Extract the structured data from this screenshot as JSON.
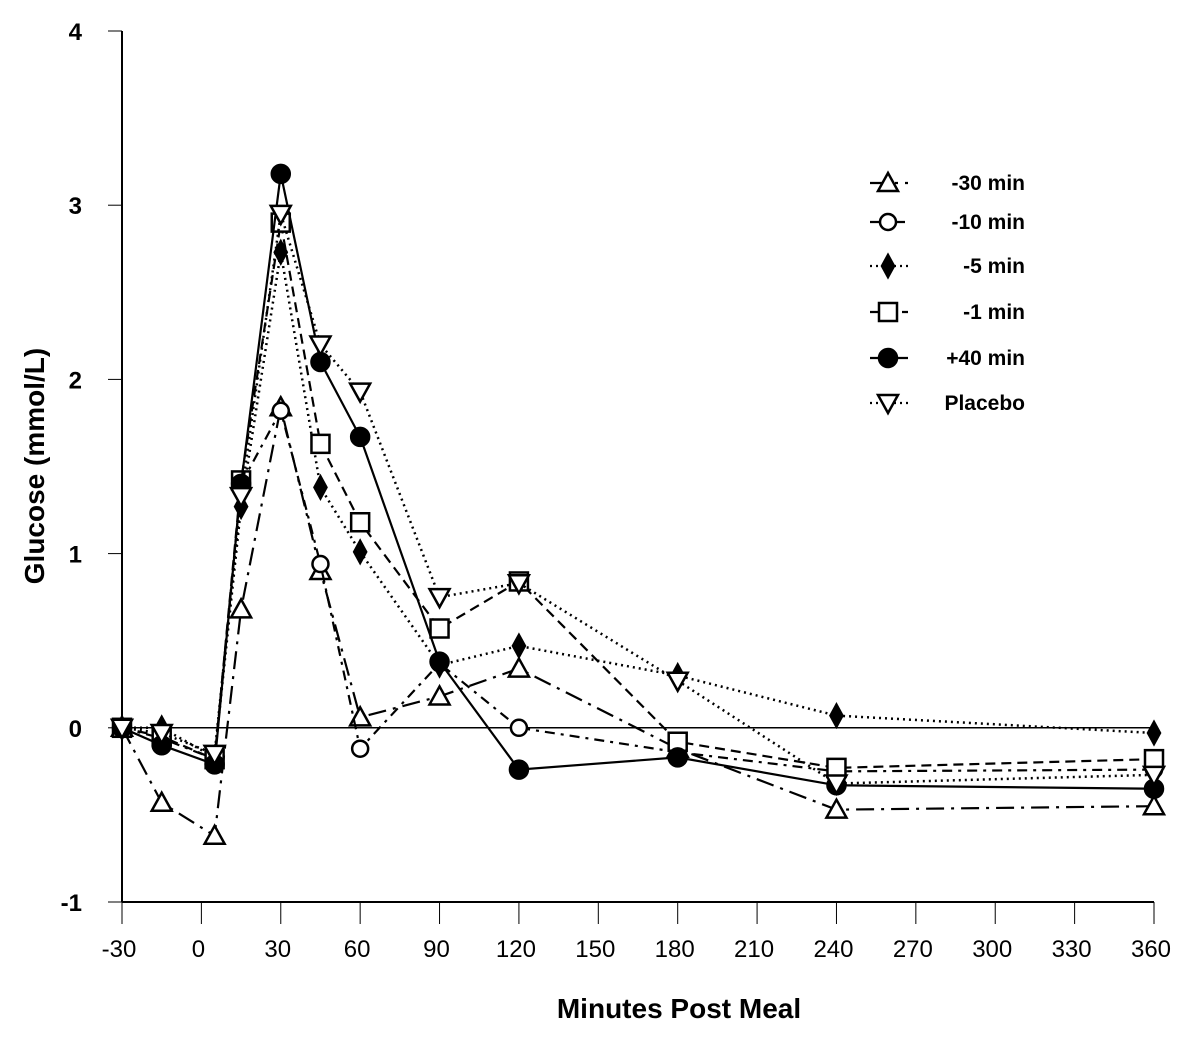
{
  "chart_data": {
    "type": "line",
    "title": "",
    "xlabel": "Minutes Post Meal",
    "ylabel": "Glucose (mmol/L)",
    "xlim": [
      -30,
      360
    ],
    "ylim": [
      -1,
      4
    ],
    "x_ticks": [
      -30,
      0,
      30,
      60,
      90,
      120,
      150,
      180,
      210,
      240,
      270,
      300,
      330,
      360
    ],
    "y_ticks": [
      -1,
      0,
      1,
      2,
      3,
      4
    ],
    "grid": false,
    "reference_line": 0,
    "legend_position": "top-right",
    "x": [
      -30,
      -15,
      5,
      15,
      30,
      45,
      60,
      90,
      120,
      180,
      240,
      360
    ],
    "series": [
      {
        "name": "-30 min",
        "marker": "triangle-up-open",
        "line": "dash-dot",
        "values": [
          0,
          -0.43,
          -0.62,
          0.68,
          1.84,
          0.9,
          0.06,
          0.18,
          0.34,
          -0.12,
          -0.47,
          -0.45
        ]
      },
      {
        "name": "-10 min",
        "marker": "circle-open",
        "line": "dash-dot-short",
        "values": [
          0,
          -0.06,
          -0.18,
          1.4,
          1.82,
          0.94,
          -0.12,
          0.37,
          0.0,
          -0.14,
          -0.25,
          -0.24
        ]
      },
      {
        "name": "-5 min",
        "marker": "diamond-filled",
        "line": "dotted",
        "values": [
          0,
          0.0,
          -0.17,
          1.27,
          2.73,
          1.38,
          1.01,
          0.36,
          0.47,
          0.3,
          0.07,
          -0.03
        ]
      },
      {
        "name": "-1 min",
        "marker": "square-open",
        "line": "dashed",
        "values": [
          0,
          -0.05,
          -0.18,
          1.42,
          2.9,
          1.63,
          1.18,
          0.57,
          0.84,
          -0.08,
          -0.23,
          -0.18
        ]
      },
      {
        "name": "+40 min",
        "marker": "circle-filled",
        "line": "solid",
        "values": [
          0,
          -0.1,
          -0.21,
          1.4,
          3.18,
          2.1,
          1.67,
          0.38,
          -0.24,
          -0.17,
          -0.33,
          -0.35
        ]
      },
      {
        "name": "Placebo",
        "marker": "triangle-down-open",
        "line": "dotted",
        "values": [
          0,
          -0.03,
          -0.15,
          1.33,
          2.95,
          2.2,
          1.93,
          0.75,
          0.83,
          0.27,
          -0.32,
          -0.27
        ]
      }
    ],
    "legend": [
      "-30 min",
      "-10 min",
      "-5 min",
      "-1 min",
      "+40 min",
      "Placebo"
    ]
  }
}
